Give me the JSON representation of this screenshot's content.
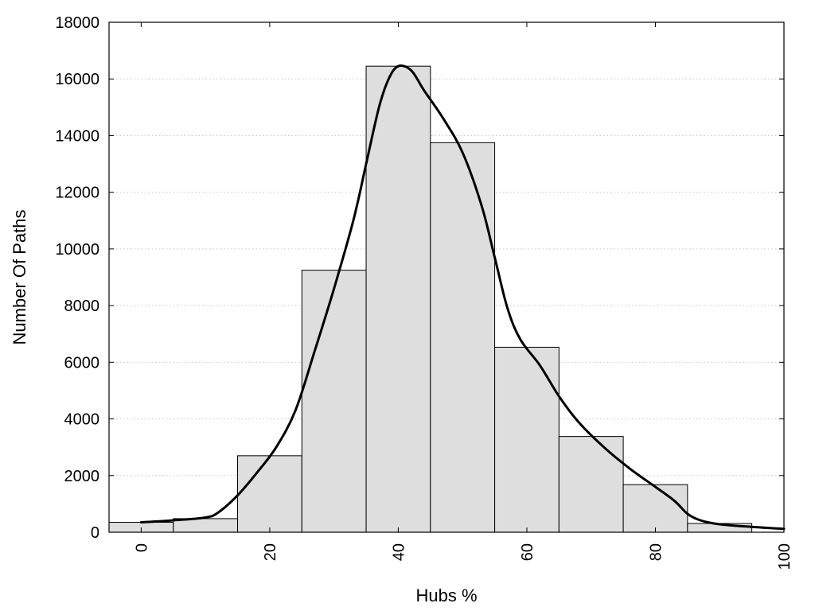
{
  "chart_data": {
    "type": "bar",
    "xlabel": "Hubs %",
    "ylabel": "Number Of Paths",
    "xlim": [
      -5,
      100
    ],
    "ylim": [
      0,
      18000
    ],
    "x_ticks": [
      0,
      20,
      40,
      60,
      80,
      100
    ],
    "y_ticks": [
      0,
      2000,
      4000,
      6000,
      8000,
      10000,
      12000,
      14000,
      16000,
      18000
    ],
    "grid": "horizontal dotted",
    "bar_color": "#dedede",
    "bar_edge_color": "#000000",
    "bars": [
      {
        "x": 0,
        "value": 350
      },
      {
        "x": 10,
        "value": 480
      },
      {
        "x": 20,
        "value": 2700
      },
      {
        "x": 30,
        "value": 9250
      },
      {
        "x": 40,
        "value": 16450
      },
      {
        "x": 50,
        "value": 13750
      },
      {
        "x": 60,
        "value": 6530
      },
      {
        "x": 70,
        "value": 3380
      },
      {
        "x": 80,
        "value": 1680
      },
      {
        "x": 90,
        "value": 310
      }
    ],
    "bar_width": 10,
    "curve": {
      "color": "#000000",
      "points": [
        [
          0,
          350
        ],
        [
          5,
          420
        ],
        [
          10,
          520
        ],
        [
          12,
          700
        ],
        [
          15,
          1300
        ],
        [
          18,
          2100
        ],
        [
          21,
          3000
        ],
        [
          24,
          4300
        ],
        [
          27,
          6400
        ],
        [
          30,
          8600
        ],
        [
          33,
          11000
        ],
        [
          35,
          13000
        ],
        [
          37,
          15000
        ],
        [
          38.5,
          16000
        ],
        [
          40,
          16450
        ],
        [
          42,
          16300
        ],
        [
          44,
          15600
        ],
        [
          47,
          14600
        ],
        [
          50,
          13400
        ],
        [
          53,
          11500
        ],
        [
          55,
          9700
        ],
        [
          57,
          7900
        ],
        [
          59,
          6800
        ],
        [
          62,
          5900
        ],
        [
          65,
          4800
        ],
        [
          68,
          3900
        ],
        [
          72,
          3000
        ],
        [
          76,
          2250
        ],
        [
          80,
          1600
        ],
        [
          83,
          1100
        ],
        [
          85,
          650
        ],
        [
          87,
          420
        ],
        [
          90,
          280
        ],
        [
          95,
          190
        ],
        [
          100,
          120
        ]
      ]
    }
  }
}
